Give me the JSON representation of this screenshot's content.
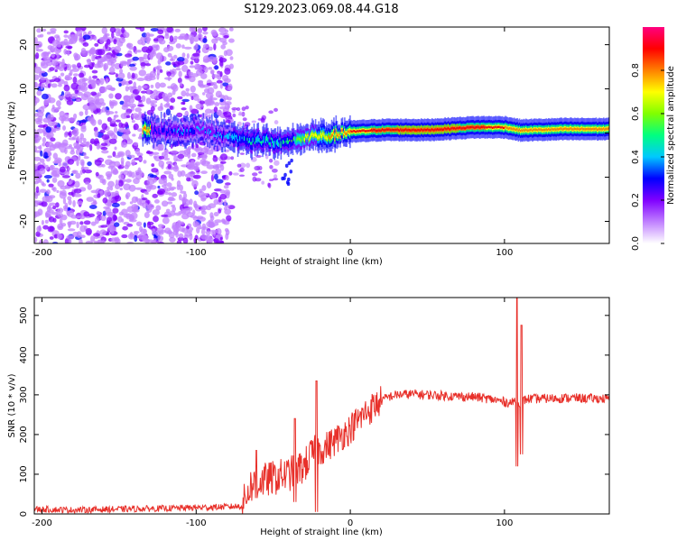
{
  "title": "S129.2023.069.08.44.G18",
  "chart_data": [
    {
      "type": "heatmap",
      "xlabel": "Height of straight line (km)",
      "ylabel": "Frequency (Hz)",
      "xlim": [
        -205,
        168
      ],
      "ylim": [
        -25,
        24
      ],
      "xticks": [
        -200,
        -100,
        0,
        100
      ],
      "yticks": [
        -20,
        -10,
        0,
        10,
        20
      ],
      "colorbar": {
        "label": "Normalized spectral amplitude",
        "range": [
          0,
          1
        ],
        "ticks": [
          "0.0",
          "0.2",
          "0.4",
          "0.6",
          "0.8"
        ],
        "tick_values": [
          0,
          0.2,
          0.4,
          0.6,
          0.8
        ],
        "colors": [
          "#ffffff",
          "#c080ff",
          "#8000ff",
          "#0000ff",
          "#00c8ff",
          "#00ff80",
          "#80ff00",
          "#ffff00",
          "#ff8000",
          "#ff0000",
          "#ff0080"
        ]
      },
      "noise_region": {
        "x_range": [
          -205,
          -77
        ],
        "y_range": [
          -25,
          24
        ]
      },
      "ridge": [
        {
          "x": -130,
          "y": 0.8,
          "amp": 0.3
        },
        {
          "x": -115,
          "y": 0.2,
          "amp": 0.35
        },
        {
          "x": -100,
          "y": 1.0,
          "amp": 0.35
        },
        {
          "x": -85,
          "y": -0.3,
          "amp": 0.4
        },
        {
          "x": -70,
          "y": -1.5,
          "amp": 0.45
        },
        {
          "x": -55,
          "y": -1.8,
          "amp": 0.5
        },
        {
          "x": -40,
          "y": -2.2,
          "amp": 0.55
        },
        {
          "x": -25,
          "y": -0.6,
          "amp": 0.7
        },
        {
          "x": -15,
          "y": -0.8,
          "amp": 0.75
        },
        {
          "x": 0,
          "y": 0.3,
          "amp": 0.85
        },
        {
          "x": 20,
          "y": 0.7,
          "amp": 0.9
        },
        {
          "x": 50,
          "y": 0.7,
          "amp": 0.95
        },
        {
          "x": 80,
          "y": 1.3,
          "amp": 0.9
        },
        {
          "x": 100,
          "y": 1.3,
          "amp": 0.85
        },
        {
          "x": 110,
          "y": 0.6,
          "amp": 0.8
        },
        {
          "x": 140,
          "y": 0.9,
          "amp": 0.8
        },
        {
          "x": 168,
          "y": 0.9,
          "amp": 0.8
        }
      ]
    },
    {
      "type": "line",
      "xlabel": "Height of straight line (km)",
      "ylabel": "SNR (10 * v/v)",
      "xlim": [
        -205,
        168
      ],
      "ylim": [
        0,
        545
      ],
      "xticks": [
        -200,
        -100,
        0,
        100
      ],
      "yticks": [
        0,
        100,
        200,
        300,
        400,
        500
      ],
      "color": "#e8302a",
      "series": [
        {
          "x": [
            -205,
            -180,
            -150,
            -120,
            -100,
            -80,
            -70,
            -65,
            -60,
            -55,
            -50,
            -45,
            -40,
            -35,
            -30,
            -25,
            -20,
            -15,
            -10,
            -5,
            0,
            5,
            10,
            15,
            20,
            25,
            30,
            40,
            50,
            60,
            70,
            80,
            90,
            100,
            105,
            108,
            110,
            112,
            115,
            120,
            140,
            168
          ],
          "values": [
            12,
            10,
            12,
            14,
            16,
            18,
            20,
            70,
            80,
            85,
            90,
            95,
            100,
            110,
            120,
            150,
            160,
            170,
            185,
            200,
            215,
            235,
            255,
            270,
            285,
            295,
            300,
            302,
            300,
            298,
            296,
            295,
            290,
            282,
            280,
            290,
            280,
            285,
            290,
            290,
            292,
            290
          ]
        }
      ],
      "spikes": [
        {
          "x": -61,
          "high": 160,
          "low": 40
        },
        {
          "x": -36,
          "high": 240,
          "low": 30
        },
        {
          "x": -22,
          "high": 335,
          "low": 5
        },
        {
          "x": 108,
          "high": 545,
          "low": 120
        },
        {
          "x": 111,
          "high": 475,
          "low": 150
        }
      ],
      "noise_amplitude": {
        "segments": [
          {
            "x_range": [
              -205,
              -70
            ],
            "amp": 8
          },
          {
            "x_range": [
              -70,
              -20
            ],
            "amp": 45
          },
          {
            "x_range": [
              -20,
              20
            ],
            "amp": 40
          },
          {
            "x_range": [
              20,
              168
            ],
            "amp": 12
          }
        ]
      }
    }
  ]
}
